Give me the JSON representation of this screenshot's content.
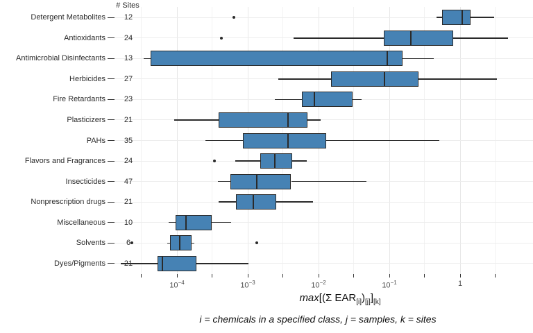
{
  "figure": {
    "sites_header": "# Sites",
    "x_axis_title_parts": {
      "max": "max",
      "bracket_open": "[(",
      "sigma": "Σ",
      "ear": " EAR",
      "sub_i": "[i]",
      "paren_close": ")",
      "sub_j": "[j]",
      "bracket_close": "]",
      "sub_k": "[k]"
    },
    "caption": "i = chemicals in a specified class, j = samples, k = sites",
    "colors": {
      "box_fill": "#4682B4",
      "box_stroke": "#2a2a2a",
      "grid_major": "#e7e7e7",
      "grid_minor": "#f2f2f2",
      "grid_horizontal": "#ededed",
      "text": "#2b2b2b",
      "tick_text": "#4d4d4d"
    }
  },
  "chart_data": {
    "type": "boxplot-horizontal",
    "title": "",
    "xlabel": "max[(Σ EAR[i])[j]][k]",
    "caption": "i = chemicals in a specified class, j = samples, k = sites",
    "x_scale": "log10",
    "xlim": [
      1e-05,
      6
    ],
    "grid": true,
    "x_major_ticks": [
      0.0001,
      0.001,
      0.01,
      0.1,
      1
    ],
    "x_major_tick_labels": [
      {
        "mantissa": "10",
        "exponent": "−4"
      },
      {
        "mantissa": "10",
        "exponent": "−3"
      },
      {
        "mantissa": "10",
        "exponent": "−2"
      },
      {
        "mantissa": "10",
        "exponent": "−1"
      },
      {
        "mantissa": "1",
        "exponent": ""
      }
    ],
    "x_minor_ticks": [
      3.16e-05,
      0.000316,
      0.00316,
      0.0316,
      0.316,
      3.16
    ],
    "sites_column_header": "# Sites",
    "categories": [
      "Detergent Metabolites",
      "Antioxidants",
      "Antimicrobial Disinfectants",
      "Herbicides",
      "Fire Retardants",
      "Plasticizers",
      "PAHs",
      "Flavors and Fragrances",
      "Insecticides",
      "Nonprescription drugs",
      "Miscellaneous",
      "Solvents",
      "Dyes/Pigments"
    ],
    "n_sites": [
      12,
      24,
      13,
      27,
      23,
      21,
      35,
      24,
      47,
      21,
      10,
      6,
      21
    ],
    "series": [
      {
        "label": "Detergent Metabolites",
        "n_sites": 12,
        "whisker_low": 0.46,
        "q1": 0.55,
        "median": 1.07,
        "q3": 1.4,
        "whisker_high": 3.0,
        "outliers": [
          0.00064
        ]
      },
      {
        "label": "Antioxidants",
        "n_sites": 24,
        "whisker_low": 0.0044,
        "q1": 0.083,
        "median": 0.2,
        "q3": 0.8,
        "whisker_high": 4.7,
        "outliers": [
          0.00042
        ]
      },
      {
        "label": "Antimicrobial Disinfectants",
        "n_sites": 13,
        "whisker_low": 3.4e-05,
        "q1": 4.2e-05,
        "median": 0.094,
        "q3": 0.155,
        "whisker_high": 0.42,
        "outliers": []
      },
      {
        "label": "Herbicides",
        "n_sites": 27,
        "whisker_low": 0.0027,
        "q1": 0.015,
        "median": 0.085,
        "q3": 0.26,
        "whisker_high": 3.3,
        "outliers": []
      },
      {
        "label": "Fire Retardants",
        "n_sites": 23,
        "whisker_low": 0.0024,
        "q1": 0.0058,
        "median": 0.0087,
        "q3": 0.03,
        "whisker_high": 0.041,
        "outliers": []
      },
      {
        "label": "Plasticizers",
        "n_sites": 21,
        "whisker_low": 9.1e-05,
        "q1": 0.00039,
        "median": 0.0037,
        "q3": 0.007,
        "whisker_high": 0.0107,
        "outliers": []
      },
      {
        "label": "PAHs",
        "n_sites": 35,
        "whisker_low": 0.00025,
        "q1": 0.00085,
        "median": 0.0037,
        "q3": 0.0128,
        "whisker_high": 0.51,
        "outliers": []
      },
      {
        "label": "Flavors and Fragrances",
        "n_sites": 24,
        "whisker_low": 0.00067,
        "q1": 0.0015,
        "median": 0.0024,
        "q3": 0.0042,
        "whisker_high": 0.0068,
        "outliers": [
          0.00034
        ]
      },
      {
        "label": "Insecticides",
        "n_sites": 47,
        "whisker_low": 0.00038,
        "q1": 0.00057,
        "median": 0.00134,
        "q3": 0.0041,
        "whisker_high": 0.047,
        "outliers": []
      },
      {
        "label": "Nonprescription drugs",
        "n_sites": 21,
        "whisker_low": 0.00039,
        "q1": 0.00068,
        "median": 0.0012,
        "q3": 0.0025,
        "whisker_high": 0.0084,
        "outliers": []
      },
      {
        "label": "Miscellaneous",
        "n_sites": 10,
        "whisker_low": 7.6e-05,
        "q1": 9.6e-05,
        "median": 0.000134,
        "q3": 0.00031,
        "whisker_high": 0.00058,
        "outliers": []
      },
      {
        "label": "Solvents",
        "n_sites": 6,
        "whisker_low": 7.3e-05,
        "q1": 8e-05,
        "median": 0.00011,
        "q3": 0.00016,
        "whisker_high": 0.000175,
        "outliers": [
          2.3e-05,
          0.00134
        ]
      },
      {
        "label": "Dyes/Pigments",
        "n_sites": 21,
        "whisker_low": 1.6e-05,
        "q1": 5.3e-05,
        "median": 6.2e-05,
        "q3": 0.00019,
        "whisker_high": 0.00102,
        "outliers": []
      }
    ]
  }
}
